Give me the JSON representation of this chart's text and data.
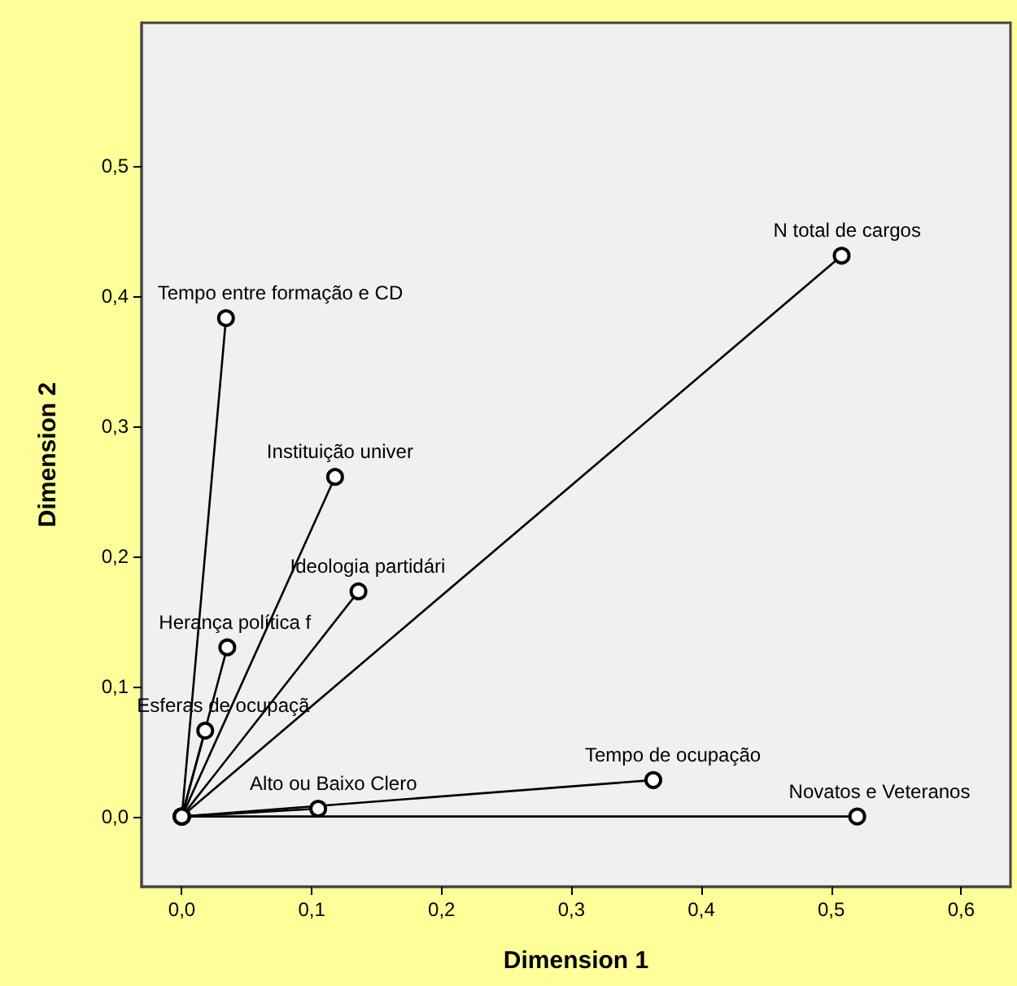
{
  "chart_data": {
    "type": "line",
    "xlabel": "Dimension 1",
    "ylabel": "Dimension 2",
    "xlim": [
      -0.031,
      0.638
    ],
    "ylim": [
      -0.054,
      0.61
    ],
    "xticks": [
      {
        "value": 0,
        "label": "0,0"
      },
      {
        "value": 0.1,
        "label": "0,1"
      },
      {
        "value": 0.2,
        "label": "0,2"
      },
      {
        "value": 0.3,
        "label": "0,3"
      },
      {
        "value": 0.4,
        "label": "0,4"
      },
      {
        "value": 0.5,
        "label": "0,5"
      },
      {
        "value": 0.6,
        "label": "0,6"
      }
    ],
    "yticks": [
      {
        "value": 0,
        "label": "0,0"
      },
      {
        "value": 0.1,
        "label": "0,1"
      },
      {
        "value": 0.2,
        "label": "0,2"
      },
      {
        "value": 0.3,
        "label": "0,3"
      },
      {
        "value": 0.4,
        "label": "0,4"
      },
      {
        "value": 0.5,
        "label": "0,5"
      }
    ],
    "grid": false,
    "marker": "circle",
    "line_style": "solid",
    "series": [
      {
        "name": "N total de cargos",
        "color": "#000000",
        "x": [
          0,
          0.508
        ],
        "values": [
          0,
          0.431
        ]
      },
      {
        "name": "Tempo entre formação e CD",
        "color": "#000000",
        "x": [
          0,
          0.034
        ],
        "values": [
          0,
          0.383
        ]
      },
      {
        "name": "Instituição univer",
        "color": "#000000",
        "x": [
          0,
          0.118
        ],
        "values": [
          0,
          0.261
        ]
      },
      {
        "name": "Ideologia partidári",
        "color": "#000000",
        "x": [
          0,
          0.136
        ],
        "values": [
          0,
          0.173
        ]
      },
      {
        "name": "Herança política f",
        "color": "#000000",
        "x": [
          0,
          0.035
        ],
        "values": [
          0,
          0.13
        ]
      },
      {
        "name": "Esferas de ocupaçã",
        "color": "#000000",
        "x": [
          0,
          0.018
        ],
        "values": [
          0,
          0.066
        ]
      },
      {
        "name": "Alto ou Baixo Clero",
        "color": "#000000",
        "x": [
          0,
          0.105
        ],
        "values": [
          0,
          0.006
        ]
      },
      {
        "name": "Tempo de ocupação",
        "color": "#000000",
        "x": [
          0,
          0.363
        ],
        "values": [
          0,
          0.028
        ]
      },
      {
        "name": "Novatos e Veteranos",
        "color": "#000000",
        "x": [
          0,
          0.52
        ],
        "values": [
          0,
          0
        ]
      }
    ]
  }
}
